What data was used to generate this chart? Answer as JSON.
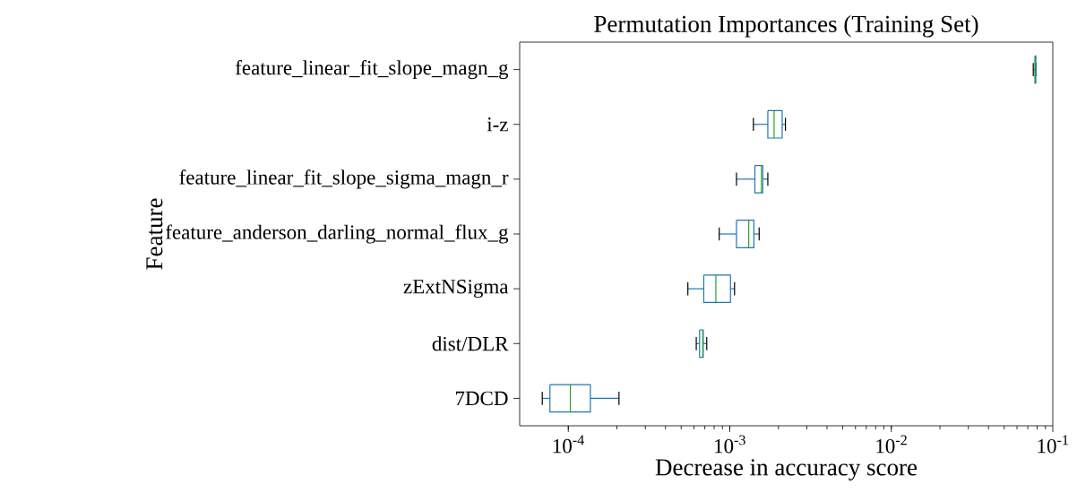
{
  "chart_data": {
    "type": "box",
    "orientation": "horizontal",
    "title": "Permutation Importances (Training Set)",
    "xlabel": "Decrease in accuracy score",
    "ylabel": "Feature",
    "log": "x",
    "xlim": [
      5e-05,
      0.1
    ],
    "xticks": [
      {
        "value": 0.0001,
        "label": "10$^{-4}$"
      },
      {
        "value": 0.001,
        "label": "10$^{-3}$"
      },
      {
        "value": 0.01,
        "label": "10$^{-2}$"
      },
      {
        "value": 0.1,
        "label": "10$^{-1}$"
      }
    ],
    "categories": [
      "feature_linear_fit_slope_magn_g",
      "i-z",
      "feature_linear_fit_slope_sigma_magn_r",
      "feature_anderson_darling_normal_flux_g",
      "zExtNSigma",
      "dist/DLR",
      "7DCD"
    ],
    "color": "#1f77b4",
    "grid": false,
    "boxes": [
      {
        "low": 0.0757,
        "q1": 0.0775,
        "median": 0.078,
        "q3": 0.0785,
        "high": 0.0785
      },
      {
        "low": 0.0014,
        "q1": 0.00172,
        "median": 0.00188,
        "q3": 0.00211,
        "high": 0.00221
      },
      {
        "low": 0.0011,
        "q1": 0.00143,
        "median": 0.00157,
        "q3": 0.0016,
        "high": 0.00172
      },
      {
        "low": 0.00086,
        "q1": 0.0011,
        "median": 0.00131,
        "q3": 0.00141,
        "high": 0.00152
      },
      {
        "low": 0.00055,
        "q1": 0.00069,
        "median": 0.00082,
        "q3": 0.00101,
        "high": 0.00107
      },
      {
        "low": 0.00062,
        "q1": 0.00065,
        "median": 0.00068,
        "q3": 0.000685,
        "high": 0.00072
      },
      {
        "low": 6.9e-05,
        "q1": 7.7e-05,
        "median": 0.000103,
        "q3": 0.000137,
        "high": 0.000206
      }
    ]
  }
}
